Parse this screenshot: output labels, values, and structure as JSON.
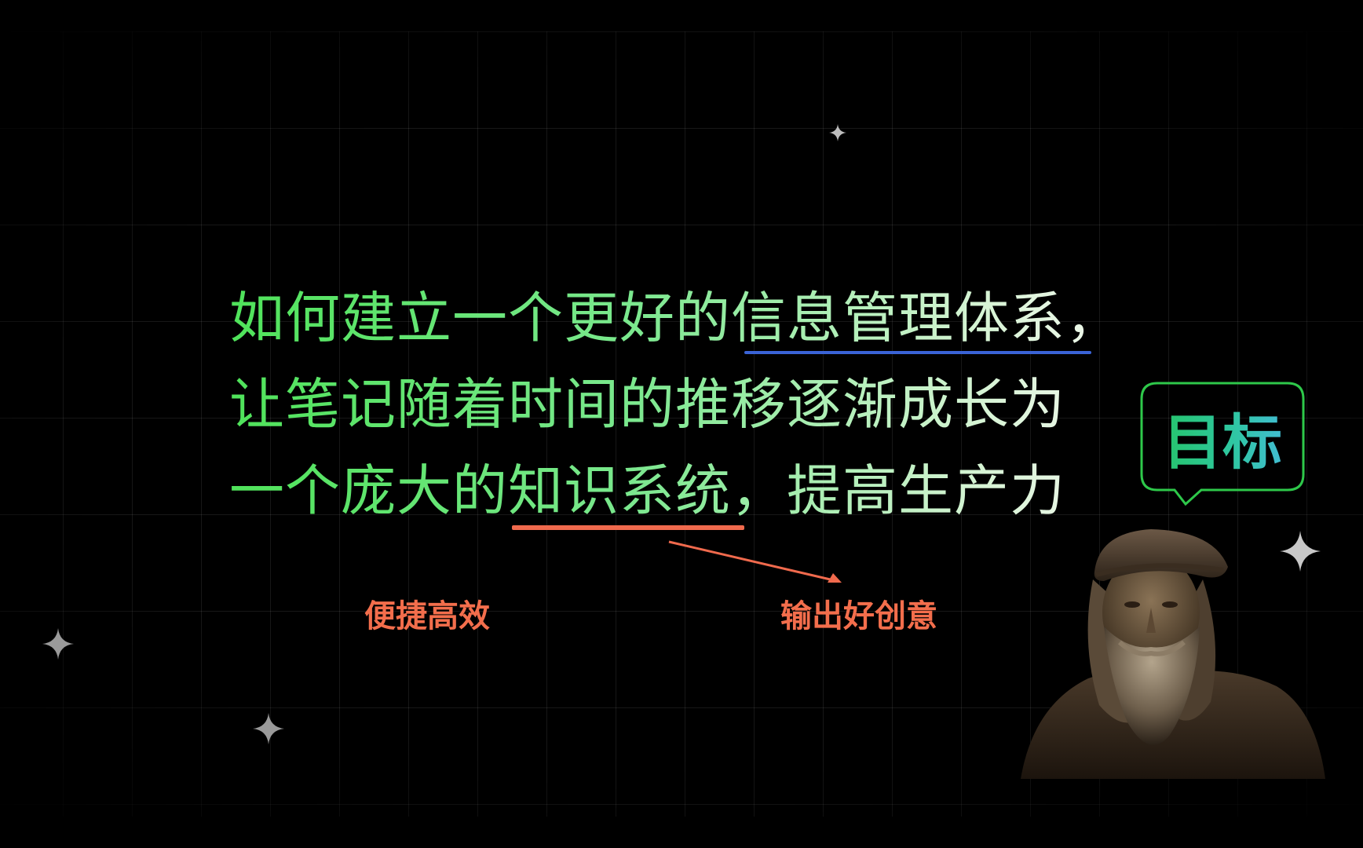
{
  "headline": {
    "line1": "如何建立一个更好的信息管理体系，",
    "line2": "让笔记随着时间的推移逐渐成长为",
    "line3": "一个庞大的知识系统，提高生产力"
  },
  "labels": {
    "left": "便捷高效",
    "right": "输出好创意"
  },
  "bubble": {
    "text": "目标"
  },
  "colors": {
    "background": "#000000",
    "headline_start": "#4fe35a",
    "headline_end": "#f2f7ee",
    "blue_underline": "#3a63d6",
    "orange_accent": "#f36e4c",
    "bubble_border": "#2ec84a"
  },
  "icons": {
    "sparkle": "four-point-star-icon",
    "arrow": "arrow-right-icon",
    "portrait": "bearded-man-portrait"
  }
}
